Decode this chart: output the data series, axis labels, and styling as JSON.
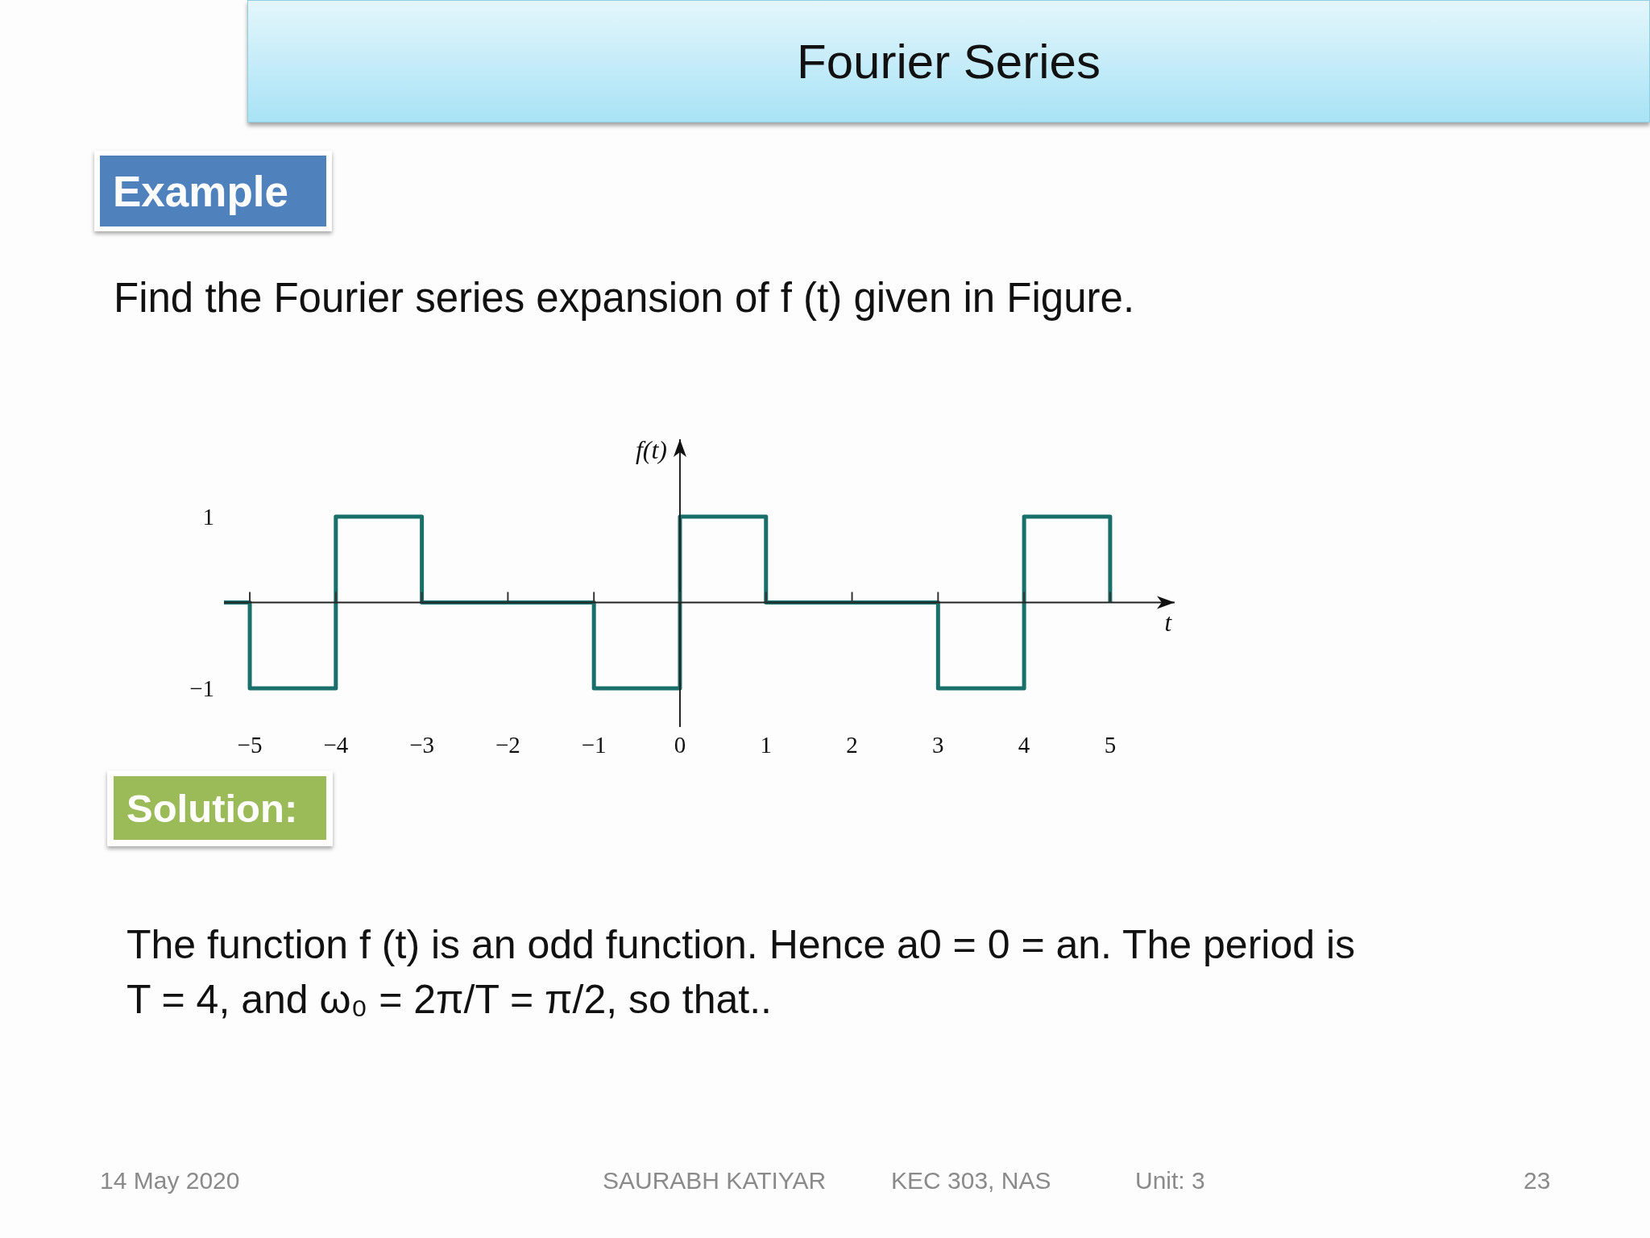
{
  "chart_data": {
    "type": "step",
    "title": "Fourier Series",
    "subtitle": "Find the Fourier series expansion of f (t) given in Figure.",
    "xlabel": "t",
    "ylabel": "f(t)",
    "x": [
      -5.3,
      -5,
      -4,
      -3,
      -1,
      0,
      1,
      3,
      4,
      5
    ],
    "values": [
      0,
      -1,
      1,
      0,
      -1,
      1,
      0,
      -1,
      1,
      0
    ],
    "color": "#19706a",
    "xlim": [
      -5.3,
      5.75
    ],
    "ylim": [
      -1.45,
      1.9
    ],
    "xticks": [
      -5,
      -4,
      -3,
      -2,
      -1,
      0,
      1,
      2,
      3,
      4,
      5
    ],
    "yticks": [
      -1,
      1
    ],
    "annotations": [
      "Example",
      "Solution:",
      "The function f (t) is an odd function. Hence a0 = 0 = an. The period is T = 4, and ω₀ = 2π/T = π/2, so that..",
      "14 May 2020",
      "SAURABH KATIYAR",
      "KEC 303, NAS",
      "Unit: 3",
      "23"
    ]
  }
}
